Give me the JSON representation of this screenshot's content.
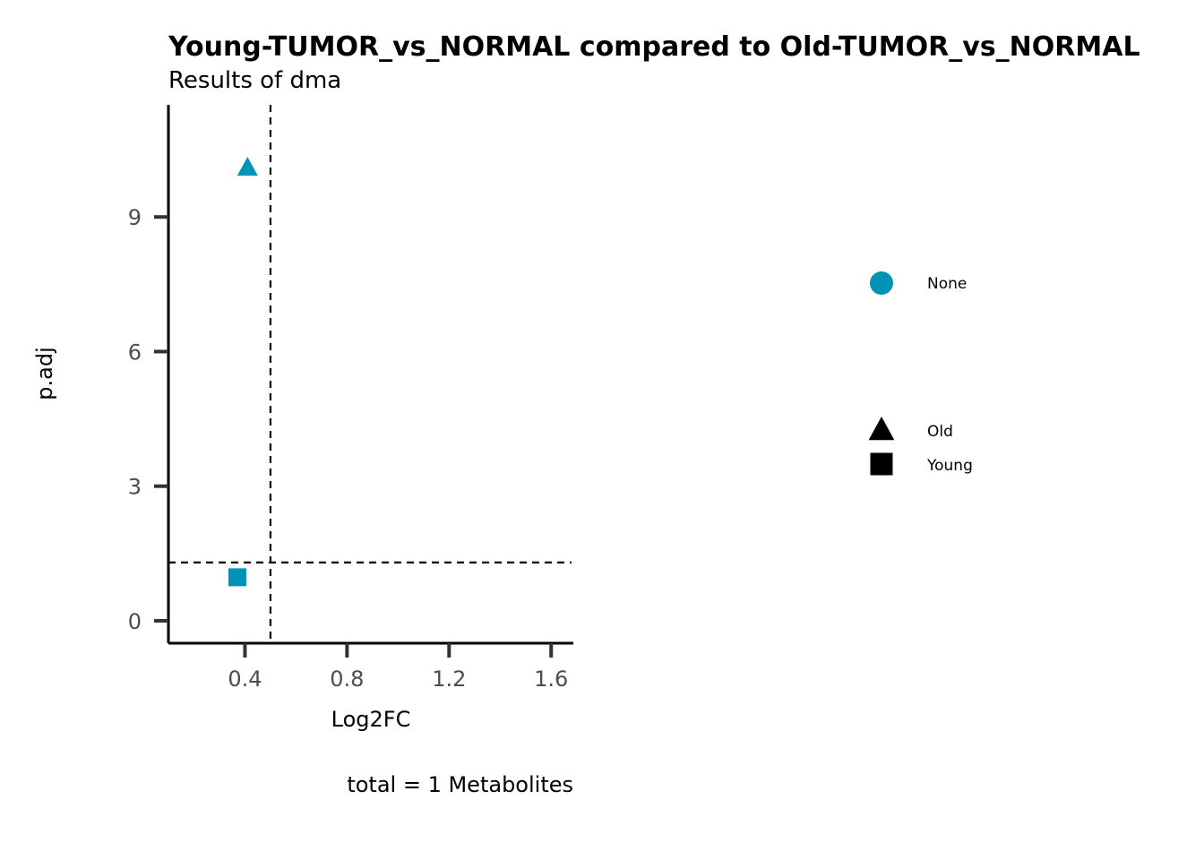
{
  "chart_data": {
    "type": "scatter",
    "title": "Young-TUMOR_vs_NORMAL compared to Old-TUMOR_vs_NORMAL",
    "subtitle": "Results of dma",
    "xlabel": "Log2FC",
    "ylabel": "p.adj",
    "caption": "total = 1 Metabolites",
    "xlim": [
      0.1,
      1.68
    ],
    "ylim": [
      -0.5,
      11.5
    ],
    "x_ticks": [
      0.4,
      0.8,
      1.2,
      1.6
    ],
    "x_tick_labels": [
      "0.4",
      "0.8",
      "1.2",
      "1.6"
    ],
    "y_ticks": [
      0,
      3,
      6,
      9
    ],
    "y_tick_labels": [
      "0",
      "3",
      "6",
      "9"
    ],
    "reference_lines": {
      "vertical_x": 0.5,
      "horizontal_y": 1.3
    },
    "grid": false,
    "points": [
      {
        "x": 0.41,
        "y": 10.1,
        "shape": "triangle",
        "color_group": "None",
        "shape_group": "Old"
      },
      {
        "x": 0.37,
        "y": 0.97,
        "shape": "square",
        "color_group": "None",
        "shape_group": "Young"
      }
    ],
    "point_color": "#0092B8",
    "legend_placement": "right",
    "legend": {
      "color_items": [
        {
          "label": "None",
          "color": "#0092B8",
          "shape": "circle"
        }
      ],
      "shape_items": [
        {
          "label": "Old",
          "shape": "triangle"
        },
        {
          "label": "Young",
          "shape": "square"
        }
      ]
    }
  }
}
